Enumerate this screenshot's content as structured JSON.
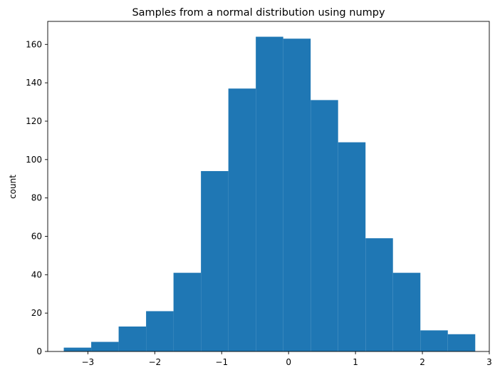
{
  "chart_data": {
    "type": "bar",
    "title": "Samples from a normal distribution using numpy",
    "xlabel": "",
    "ylabel": "count",
    "bar_color": "#1f77b4",
    "xlim": [
      -3.6,
      3.0
    ],
    "ylim": [
      0,
      172
    ],
    "grid": false,
    "bins": [
      {
        "x0": -3.36,
        "x1": -2.95,
        "count": 2
      },
      {
        "x0": -2.95,
        "x1": -2.54,
        "count": 5
      },
      {
        "x0": -2.54,
        "x1": -2.13,
        "count": 13
      },
      {
        "x0": -2.13,
        "x1": -1.72,
        "count": 21
      },
      {
        "x0": -1.72,
        "x1": -1.31,
        "count": 41
      },
      {
        "x0": -1.31,
        "x1": -0.9,
        "count": 94
      },
      {
        "x0": -0.9,
        "x1": -0.49,
        "count": 137
      },
      {
        "x0": -0.49,
        "x1": -0.08,
        "count": 164
      },
      {
        "x0": -0.08,
        "x1": 0.33,
        "count": 163
      },
      {
        "x0": 0.33,
        "x1": 0.74,
        "count": 131
      },
      {
        "x0": 0.74,
        "x1": 1.15,
        "count": 109
      },
      {
        "x0": 1.15,
        "x1": 1.56,
        "count": 59
      },
      {
        "x0": 1.56,
        "x1": 1.97,
        "count": 41
      },
      {
        "x0": 1.97,
        "x1": 2.38,
        "count": 11
      },
      {
        "x0": 2.38,
        "x1": 2.79,
        "count": 9
      }
    ],
    "x_ticks": [
      -3,
      -2,
      -1,
      0,
      1,
      2,
      3
    ],
    "x_tick_labels": [
      "−3",
      "−2",
      "−1",
      "0",
      "1",
      "2",
      "3"
    ],
    "y_ticks": [
      0,
      20,
      40,
      60,
      80,
      100,
      120,
      140,
      160
    ],
    "y_tick_labels": [
      "0",
      "20",
      "40",
      "60",
      "80",
      "100",
      "120",
      "140",
      "160"
    ]
  }
}
